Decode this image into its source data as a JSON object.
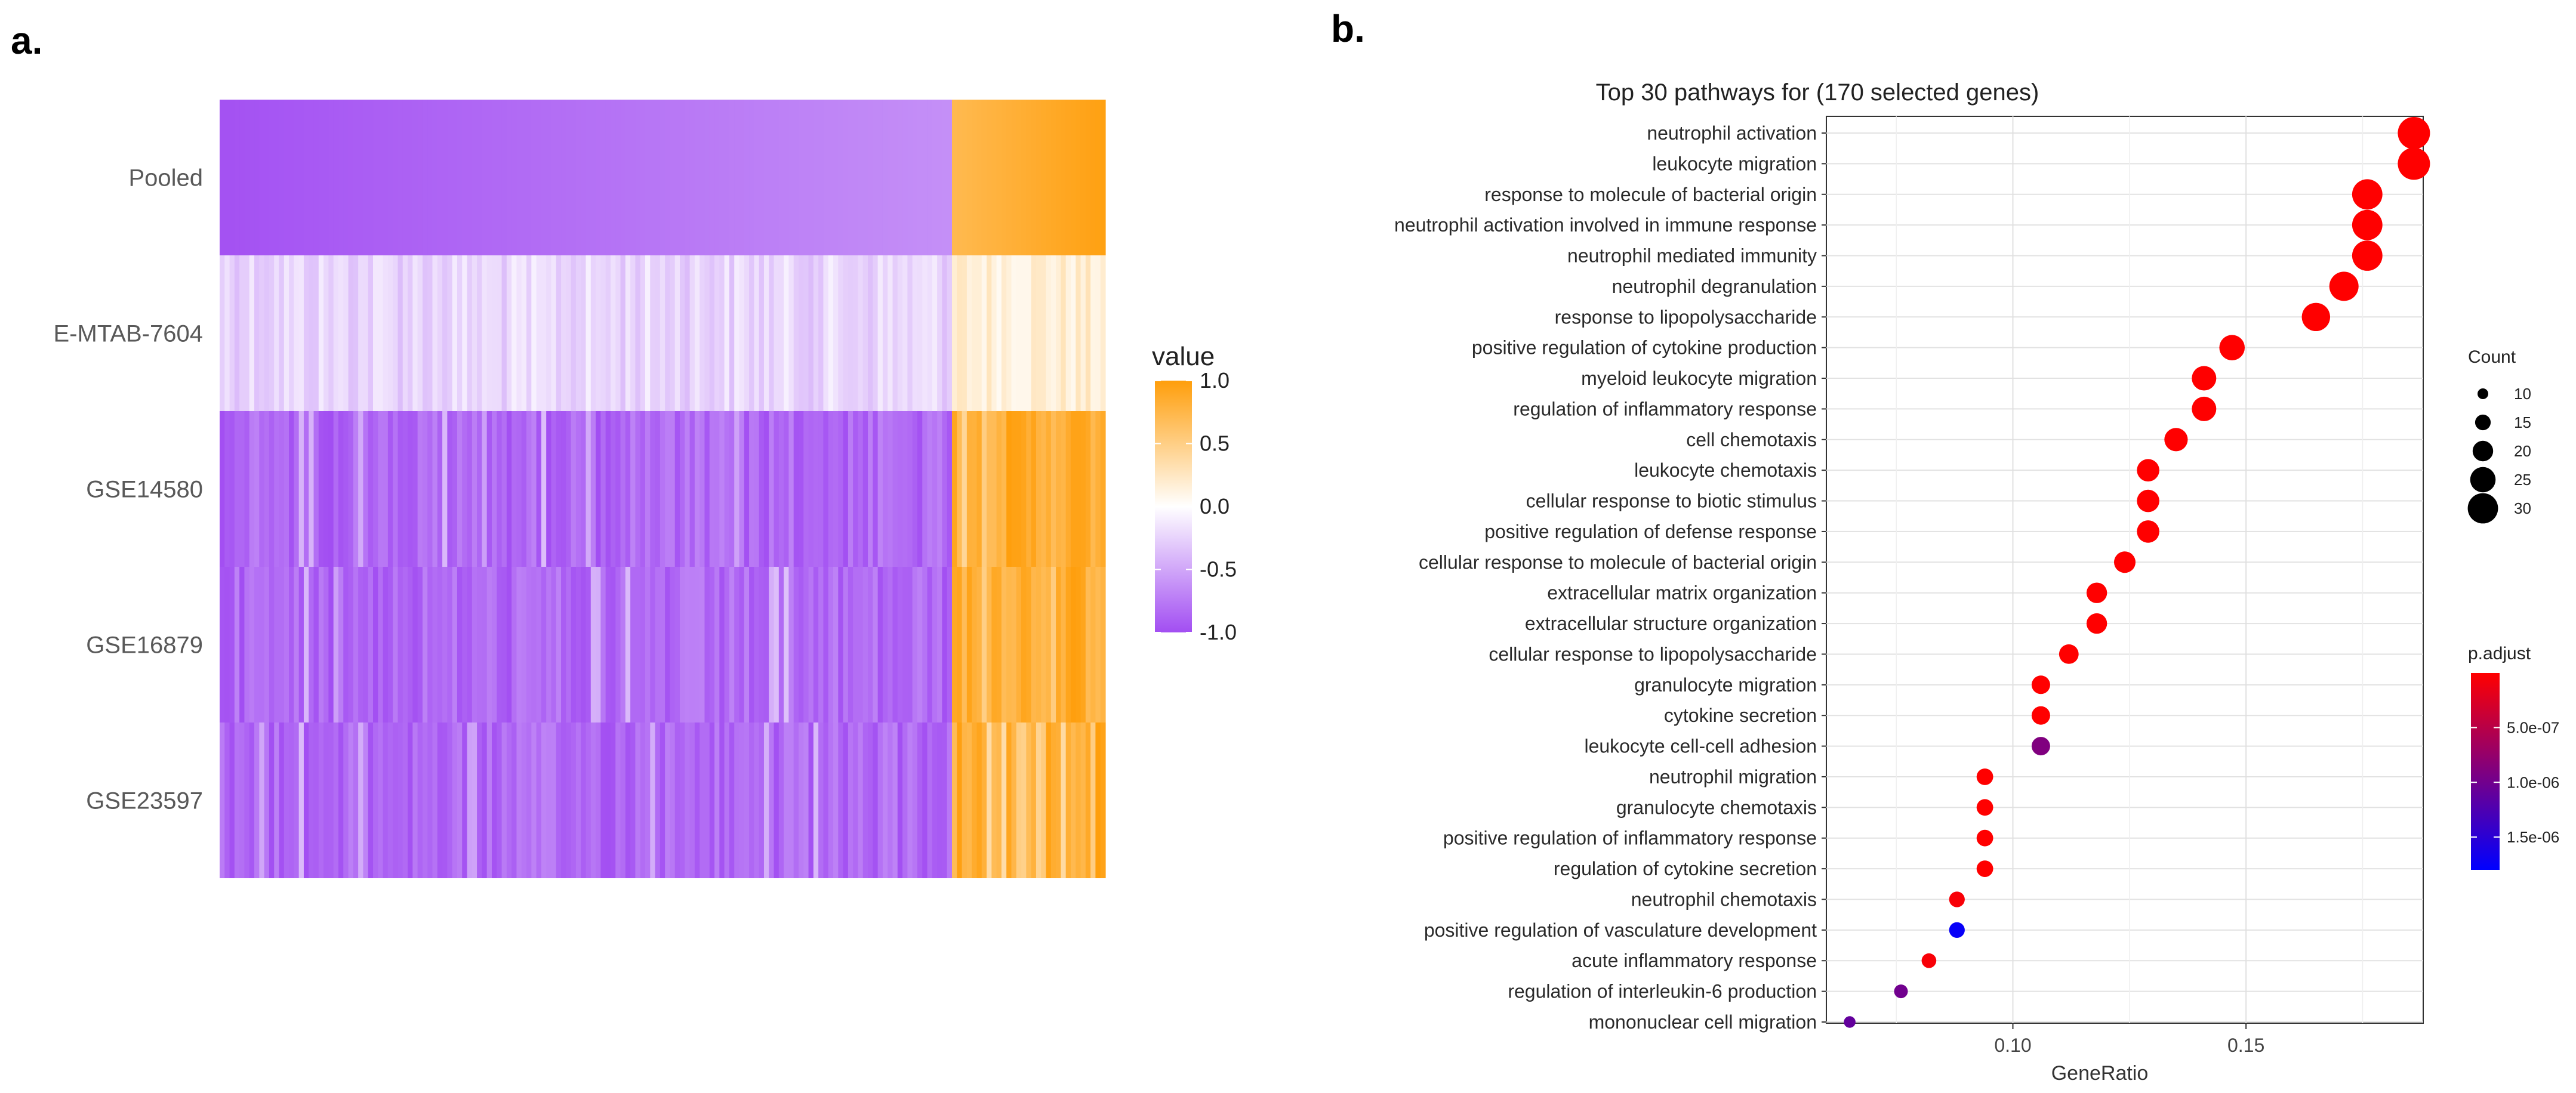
{
  "panel_a_letter": "a.",
  "panel_b_letter": "b.",
  "chart_data": [
    {
      "type": "heatmap",
      "rows": [
        "Pooled",
        "E-MTAB-7604",
        "GSE14580",
        "GSE16879",
        "GSE23597"
      ],
      "n_genes_negative": 148,
      "n_genes_positive": 31,
      "row_patterns": {
        "Pooled": "smooth",
        "E-MTAB-7604": "light-mixed",
        "GSE14580": "strong-mixed",
        "GSE16879": "strong-mixed",
        "GSE23597": "strong-mixed"
      },
      "legend": {
        "title": "value",
        "ticks": [
          "1.0",
          "0.5",
          "0.0",
          "-0.5",
          "-1.0"
        ],
        "values": [
          1.0,
          0.5,
          0.0,
          -0.5,
          -1.0
        ]
      },
      "colors": {
        "low": "#a24ef2",
        "mid": "#ffffff",
        "high": "#ff9e0b"
      },
      "value_range": [
        -1.0,
        1.0
      ]
    },
    {
      "type": "scatter",
      "title": "Top 30 pathways for  (170 selected genes)",
      "xlabel": "GeneRatio",
      "ylabel": "",
      "xlim": [
        0.06,
        0.188
      ],
      "x_ticks": [
        0.1,
        0.15
      ],
      "x_tick_labels": [
        "0.10",
        "0.15"
      ],
      "categories": [
        "neutrophil activation",
        "leukocyte migration",
        "response to molecule of bacterial origin",
        "neutrophil activation involved in immune response",
        "neutrophil mediated immunity",
        "neutrophil degranulation",
        "response to lipopolysaccharide",
        "positive regulation of cytokine production",
        "myeloid leukocyte migration",
        "regulation of inflammatory response",
        "cell chemotaxis",
        "leukocyte chemotaxis",
        "cellular response to biotic stimulus",
        "positive regulation of defense response",
        "cellular response to molecule of bacterial origin",
        "extracellular matrix organization",
        "extracellular structure organization",
        "cellular response to lipopolysaccharide",
        "granulocyte migration",
        "cytokine secretion",
        "leukocyte cell-cell adhesion",
        "neutrophil migration",
        "granulocyte chemotaxis",
        "positive regulation of inflammatory response",
        "regulation of cytokine secretion",
        "neutrophil chemotaxis",
        "positive regulation of vasculature development",
        "acute inflammatory response",
        "regulation of interleukin-6 production",
        "mononuclear cell migration"
      ],
      "gene_ratio": [
        0.186,
        0.186,
        0.176,
        0.176,
        0.176,
        0.171,
        0.165,
        0.147,
        0.141,
        0.141,
        0.135,
        0.129,
        0.129,
        0.129,
        0.124,
        0.118,
        0.118,
        0.112,
        0.106,
        0.106,
        0.106,
        0.094,
        0.094,
        0.094,
        0.094,
        0.088,
        0.088,
        0.082,
        0.076,
        0.065
      ],
      "count": [
        32,
        32,
        30,
        30,
        30,
        29,
        28,
        25,
        24,
        24,
        23,
        22,
        22,
        22,
        21,
        20,
        20,
        19,
        18,
        18,
        18,
        16,
        16,
        16,
        16,
        15,
        15,
        14,
        13,
        11
      ],
      "p_adjust": [
        1e-09,
        1e-09,
        1e-09,
        1e-09,
        1e-09,
        1e-09,
        1e-09,
        1e-09,
        1e-09,
        1e-09,
        1e-09,
        1e-09,
        1e-09,
        1e-09,
        1e-09,
        1e-09,
        1e-09,
        1e-09,
        1e-09,
        1e-09,
        9e-07,
        1e-09,
        1e-09,
        1e-09,
        1e-09,
        5e-08,
        1.75e-06,
        5e-08,
        1e-06,
        1.1e-06
      ],
      "size_legend": {
        "title": "Count",
        "values": [
          10,
          15,
          20,
          25,
          30
        ],
        "labels": [
          "10",
          "15",
          "20",
          "25",
          "30"
        ]
      },
      "color_legend": {
        "title": "p.adjust",
        "ticks": [
          5e-07,
          1e-06,
          1.5e-06
        ],
        "tick_labels": [
          "5.0e-07",
          "1.0e-06",
          "1.5e-06"
        ],
        "range": [
          1e-09,
          1.8e-06
        ],
        "colors": [
          "#ff0000",
          "#0000ff"
        ]
      },
      "grid": true
    }
  ]
}
